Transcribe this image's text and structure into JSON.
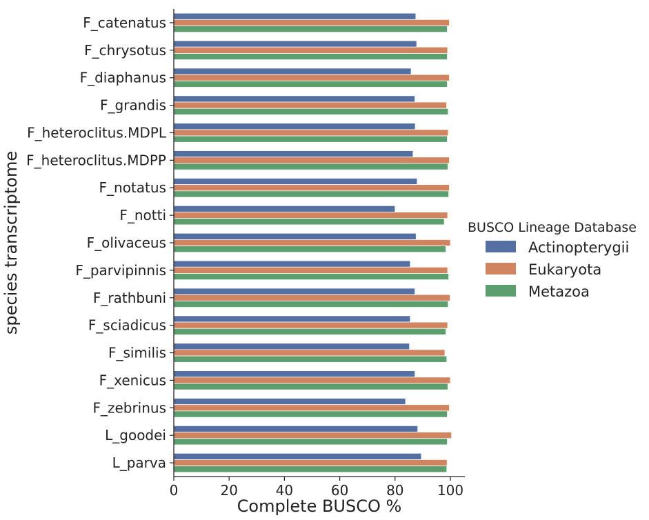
{
  "chart_data": {
    "type": "bar",
    "orientation": "horizontal",
    "xlabel": "Complete BUSCO %",
    "ylabel": "species transcriptome",
    "xlim": [
      0,
      105
    ],
    "xticks": [
      0,
      20,
      40,
      60,
      80,
      100
    ],
    "grid": false,
    "legend": {
      "title": "BUSCO Lineage Database",
      "placement": "right"
    },
    "categories": [
      "F_catenatus",
      "F_chrysotus",
      "F_diaphanus",
      "F_grandis",
      "F_heteroclitus.MDPL",
      "F_heteroclitus.MDPP",
      "F_notatus",
      "F_notti",
      "F_olivaceus",
      "F_parvipinnis",
      "F_rathbuni",
      "F_sciadicus",
      "F_similis",
      "F_xenicus",
      "F_zebrinus",
      "L_goodei",
      "L_parva"
    ],
    "series": [
      {
        "name": "Actinopterygii",
        "color": "#5470a3",
        "values": [
          87.5,
          87.8,
          85.8,
          87.2,
          87.3,
          86.5,
          88.0,
          80.0,
          87.6,
          85.5,
          87.2,
          85.5,
          85.2,
          87.2,
          83.8,
          88.2,
          89.5
        ]
      },
      {
        "name": "Eukaryota",
        "color": "#d0845f",
        "values": [
          99.6,
          99.0,
          99.6,
          98.6,
          99.2,
          99.6,
          99.6,
          99.0,
          100.0,
          99.0,
          99.9,
          99.0,
          98.0,
          100.0,
          99.6,
          100.4,
          98.8
        ]
      },
      {
        "name": "Metazoa",
        "color": "#5c9e6e",
        "values": [
          98.9,
          98.9,
          98.9,
          99.2,
          98.9,
          99.1,
          99.4,
          97.8,
          98.4,
          99.4,
          99.2,
          98.4,
          98.7,
          99.1,
          98.9,
          98.9,
          98.7
        ]
      }
    ]
  }
}
